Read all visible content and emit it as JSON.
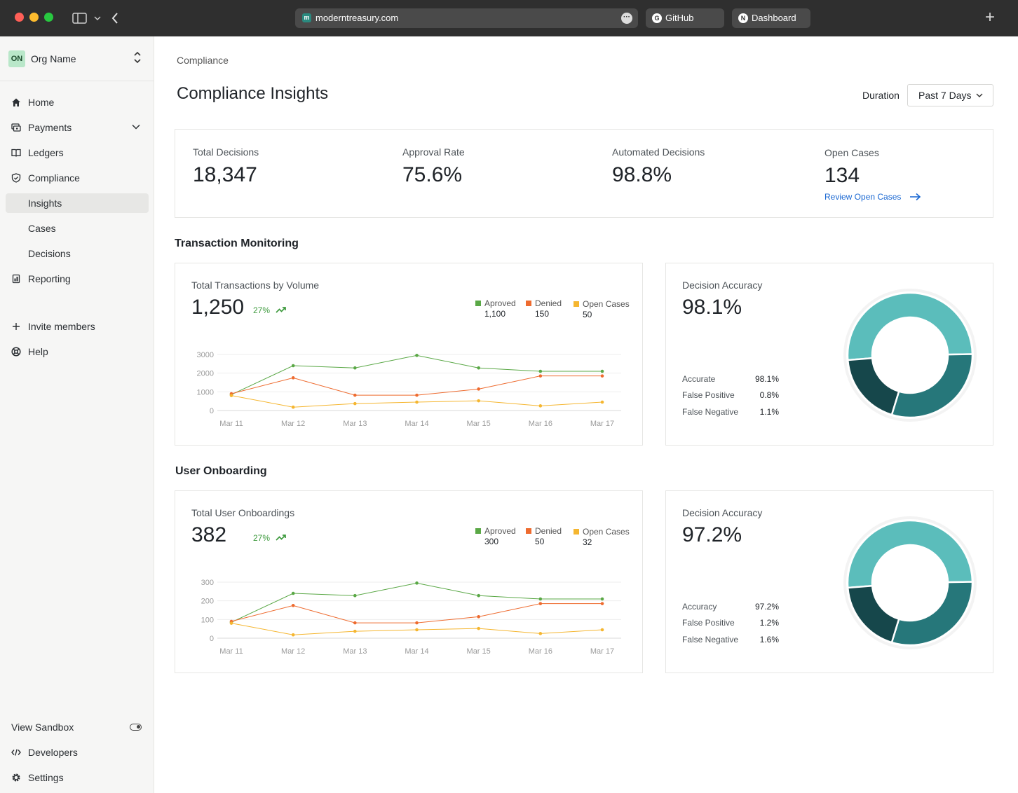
{
  "browser": {
    "url": "moderntreasury.com",
    "tabs": [
      {
        "label": "GitHub"
      },
      {
        "label": "Dashboard"
      }
    ]
  },
  "sidebar": {
    "org": {
      "badge": "ON",
      "name": "Org Name"
    },
    "items": [
      {
        "label": "Home"
      },
      {
        "label": "Payments"
      },
      {
        "label": "Ledgers"
      },
      {
        "label": "Compliance"
      },
      {
        "label": "Insights"
      },
      {
        "label": "Cases"
      },
      {
        "label": "Decisions"
      },
      {
        "label": "Reporting"
      }
    ],
    "invite_label": "Invite members",
    "help_label": "Help",
    "sandbox_label": "View Sandbox",
    "developers_label": "Developers",
    "settings_label": "Settings"
  },
  "page": {
    "breadcrumb": "Compliance",
    "title": "Compliance Insights",
    "duration_label": "Duration",
    "duration_value": "Past 7 Days"
  },
  "stats": [
    {
      "label": "Total Decisions",
      "value": "18,347"
    },
    {
      "label": "Approval Rate",
      "value": "75.6%"
    },
    {
      "label": "Automated Decisions",
      "value": "98.8%"
    },
    {
      "label": "Open Cases",
      "value": "134",
      "link": "Review Open Cases"
    }
  ],
  "colors": {
    "approved": "#5aa846",
    "denied": "#ee6b2f",
    "open": "#f5b630",
    "donut_light": "#5bbdbb",
    "donut_mid": "#26777a",
    "donut_dark": "#16474b"
  },
  "sections": {
    "transaction": "Transaction Monitoring",
    "onboarding": "User Onboarding"
  },
  "transactions": {
    "title": "Total Transactions by Volume",
    "total": "1,250",
    "trend": "27%",
    "legend": [
      {
        "name": "Aproved",
        "value": "1,100"
      },
      {
        "name": "Denied",
        "value": "150"
      },
      {
        "name": "Open Cases",
        "value": "50"
      }
    ]
  },
  "onboarding": {
    "title": "Total User Onboardings",
    "total": "382",
    "trend": "27%",
    "legend": [
      {
        "name": "Aproved",
        "value": "300"
      },
      {
        "name": "Denied",
        "value": "50"
      },
      {
        "name": "Open Cases",
        "value": "32"
      }
    ]
  },
  "accuracy_tx": {
    "title": "Decision Accuracy",
    "value": "98.1%",
    "rows": [
      {
        "label": "Accurate",
        "value": "98.1%"
      },
      {
        "label": "False Positive",
        "value": "0.8%"
      },
      {
        "label": "False Negative",
        "value": "1.1%"
      }
    ]
  },
  "accuracy_ob": {
    "title": "Decision Accuracy",
    "value": "97.2%",
    "rows": [
      {
        "label": "Accuracy",
        "value": "97.2%"
      },
      {
        "label": "False Positive",
        "value": "1.2%"
      },
      {
        "label": "False Negative",
        "value": "1.6%"
      }
    ]
  },
  "chart_data": [
    {
      "type": "line",
      "x": [
        "Mar 11",
        "Mar 12",
        "Mar 13",
        "Mar 14",
        "Mar 15",
        "Mar 16",
        "Mar 17"
      ],
      "yticks": [
        "0",
        "1000",
        "2000",
        "3000"
      ],
      "ylim": [
        0,
        3000
      ],
      "series": [
        {
          "name": "Aproved",
          "values": [
            850,
            2400,
            2280,
            2950,
            2280,
            2100,
            2100
          ]
        },
        {
          "name": "Denied",
          "values": [
            900,
            1750,
            820,
            820,
            1150,
            1850,
            1850
          ]
        },
        {
          "name": "Open Cases",
          "values": [
            800,
            180,
            370,
            450,
            520,
            250,
            450
          ]
        }
      ]
    },
    {
      "type": "line",
      "x": [
        "Mar 11",
        "Mar 12",
        "Mar 13",
        "Mar 14",
        "Mar 15",
        "Mar 16",
        "Mar 17"
      ],
      "yticks": [
        "0",
        "100",
        "200",
        "300"
      ],
      "ylim": [
        0,
        300
      ],
      "series": [
        {
          "name": "Aproved",
          "values": [
            85,
            240,
            228,
            295,
            228,
            210,
            210
          ]
        },
        {
          "name": "Denied",
          "values": [
            90,
            175,
            82,
            82,
            115,
            185,
            185
          ]
        },
        {
          "name": "Open Cases",
          "values": [
            80,
            18,
            37,
            45,
            52,
            25,
            45
          ]
        }
      ]
    },
    {
      "type": "pie",
      "categories": [
        "segment-1",
        "segment-2",
        "segment-3"
      ],
      "values": [
        51,
        30,
        19
      ]
    },
    {
      "type": "pie",
      "categories": [
        "segment-1",
        "segment-2",
        "segment-3"
      ],
      "values": [
        51,
        30,
        19
      ]
    }
  ]
}
